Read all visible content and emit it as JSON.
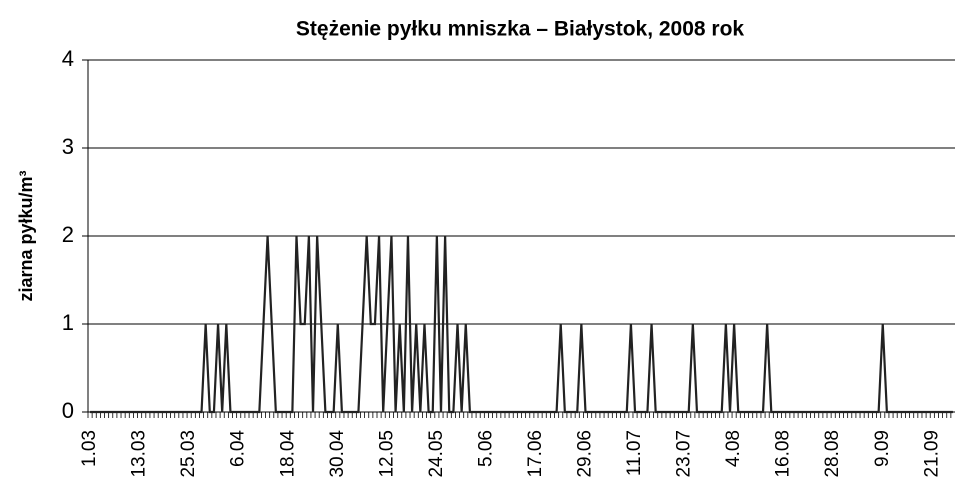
{
  "chart_data": {
    "type": "line",
    "title": "Stężenie pyłku mniszka – Białystok, 2008 rok",
    "y_label": "ziarna pyłku/m³",
    "categories": [
      "1.03",
      null,
      null,
      null,
      null,
      null,
      null,
      null,
      null,
      null,
      null,
      null,
      "13.03",
      null,
      null,
      null,
      null,
      null,
      null,
      null,
      null,
      null,
      null,
      null,
      "25.03",
      null,
      null,
      null,
      null,
      null,
      null,
      null,
      null,
      null,
      null,
      null,
      "6.04",
      null,
      null,
      null,
      null,
      null,
      null,
      null,
      null,
      null,
      null,
      null,
      "18.04",
      null,
      null,
      null,
      null,
      null,
      null,
      null,
      null,
      null,
      null,
      null,
      "30.04",
      null,
      null,
      null,
      null,
      null,
      null,
      null,
      null,
      null,
      null,
      null,
      "12.05",
      null,
      null,
      null,
      null,
      null,
      null,
      null,
      null,
      null,
      null,
      null,
      "24.05",
      null,
      null,
      null,
      null,
      null,
      null,
      null,
      null,
      null,
      null,
      null,
      "5.06",
      null,
      null,
      null,
      null,
      null,
      null,
      null,
      null,
      null,
      null,
      null,
      "17.06",
      null,
      null,
      null,
      null,
      null,
      null,
      null,
      null,
      null,
      null,
      null,
      "29.06",
      null,
      null,
      null,
      null,
      null,
      null,
      null,
      null,
      null,
      null,
      null,
      "11.07",
      null,
      null,
      null,
      null,
      null,
      null,
      null,
      null,
      null,
      null,
      null,
      "23.07",
      null,
      null,
      null,
      null,
      null,
      null,
      null,
      null,
      null,
      null,
      null,
      "4.08",
      null,
      null,
      null,
      null,
      null,
      null,
      null,
      null,
      null,
      null,
      null,
      "16.08",
      null,
      null,
      null,
      null,
      null,
      null,
      null,
      null,
      null,
      null,
      null,
      "28.08",
      null,
      null,
      null,
      null,
      null,
      null,
      null,
      null,
      null,
      null,
      null,
      "9.09",
      null,
      null,
      null,
      null,
      null,
      null,
      null,
      null,
      null,
      null,
      null,
      "21.09",
      null,
      null,
      null,
      null,
      null
    ],
    "values": [
      0,
      0,
      0,
      0,
      0,
      0,
      0,
      0,
      0,
      0,
      0,
      0,
      0,
      0,
      0,
      0,
      0,
      0,
      0,
      0,
      0,
      0,
      0,
      0,
      0,
      0,
      0,
      0,
      1,
      0,
      0,
      1,
      0,
      1,
      0,
      0,
      0,
      0,
      0,
      0,
      0,
      0,
      1,
      2,
      1,
      0,
      0,
      0,
      0,
      0,
      2,
      1,
      1,
      2,
      0,
      2,
      1,
      0,
      0,
      0,
      1,
      0,
      0,
      0,
      0,
      0,
      1,
      2,
      1,
      1,
      2,
      0,
      1,
      2,
      0,
      1,
      0,
      2,
      0,
      1,
      0,
      1,
      0,
      0,
      2,
      0,
      2,
      0,
      0,
      1,
      0,
      1,
      0,
      0,
      0,
      0,
      0,
      0,
      0,
      0,
      0,
      0,
      0,
      0,
      0,
      0,
      0,
      0,
      0,
      0,
      0,
      0,
      0,
      0,
      1,
      0,
      0,
      0,
      0,
      1,
      0,
      0,
      0,
      0,
      0,
      0,
      0,
      0,
      0,
      0,
      0,
      1,
      0,
      0,
      0,
      0,
      1,
      0,
      0,
      0,
      0,
      0,
      0,
      0,
      0,
      0,
      1,
      0,
      0,
      0,
      0,
      0,
      0,
      0,
      1,
      0,
      1,
      0,
      0,
      0,
      0,
      0,
      0,
      0,
      1,
      0,
      0,
      0,
      0,
      0,
      0,
      0,
      0,
      0,
      0,
      0,
      0,
      0,
      0,
      0,
      0,
      0,
      0,
      0,
      0,
      0,
      0,
      0,
      0,
      0,
      0,
      0,
      1,
      0,
      0,
      0,
      0,
      0,
      0,
      0,
      0,
      0,
      0,
      0,
      0,
      0,
      0,
      0,
      0,
      0
    ],
    "color": "#222222",
    "ylim": [
      0,
      4
    ],
    "yticks": [
      0,
      1,
      2,
      3,
      4
    ],
    "grid": true
  }
}
